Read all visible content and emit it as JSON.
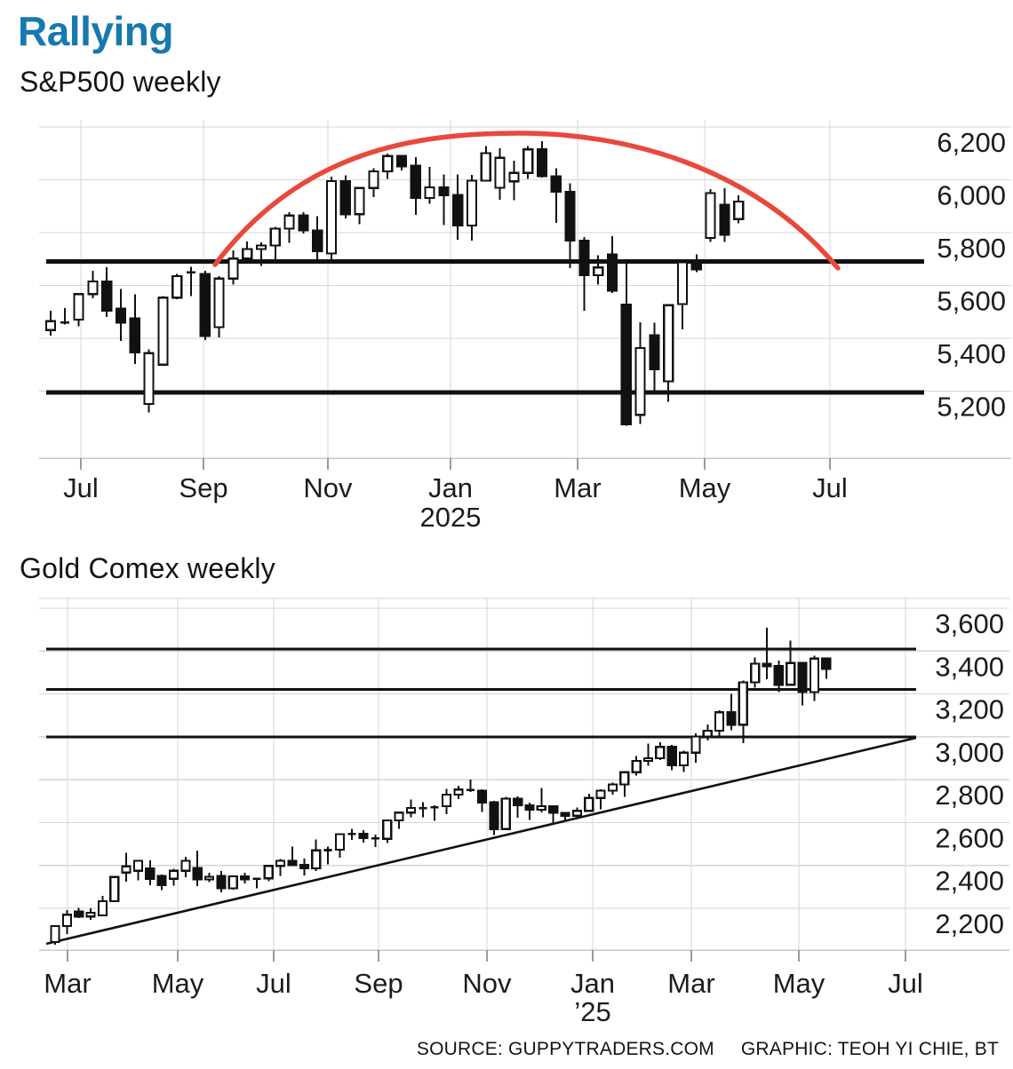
{
  "header": {
    "title": "Rallying"
  },
  "colors": {
    "title_blue": "#1779ae",
    "arc_red": "#e8493c",
    "ink": "#111111",
    "grid": "#d6d6d6",
    "axis_line": "#c9c9c9",
    "tick": "#9b9b9b"
  },
  "footer": {
    "source": "SOURCE: GUPPYTRADERS.COM",
    "credit": "GRAPHIC: TEOH YI CHIE, BT"
  },
  "chart_data": [
    {
      "id": "sp500-weekly",
      "type": "candlestick",
      "title": "S&P500 weekly",
      "ylim": [
        4950,
        6230
      ],
      "grid": true,
      "y_ticks": {
        "values": [
          6200,
          6000,
          5800,
          5600,
          5400,
          5200
        ],
        "labels": [
          "6,200",
          "6,000",
          "5,800",
          "5,600",
          "5,400",
          "5,200"
        ]
      },
      "x_ticks": {
        "labels": [
          "Jul",
          "Sep",
          "Nov",
          "Jan",
          "Mar",
          "May",
          "Jul"
        ],
        "year_label": "2025",
        "year_under_index": 3
      },
      "horizontal_lines": [
        5690,
        5195
      ],
      "annotations": [
        {
          "name": "rounding-top-arc",
          "shape": "dome-arc",
          "color_key": "arc_red",
          "start_value": 5680,
          "peak_value": 6175,
          "end_value": 5665
        }
      ],
      "candles_ohlc": [
        [
          5431,
          5505,
          5410,
          5465
        ],
        [
          5459,
          5515,
          5452,
          5461
        ],
        [
          5471,
          5572,
          5446,
          5567
        ],
        [
          5567,
          5656,
          5551,
          5615
        ],
        [
          5615,
          5669,
          5481,
          5505
        ],
        [
          5513,
          5586,
          5390,
          5459
        ],
        [
          5476,
          5566,
          5302,
          5346
        ],
        [
          5151,
          5358,
          5119,
          5344
        ],
        [
          5300,
          5560,
          5297,
          5554
        ],
        [
          5554,
          5643,
          5548,
          5635
        ],
        [
          5650,
          5670,
          5560,
          5648
        ],
        [
          5644,
          5656,
          5394,
          5408
        ],
        [
          5442,
          5636,
          5403,
          5626
        ],
        [
          5626,
          5733,
          5604,
          5702
        ],
        [
          5702,
          5767,
          5696,
          5738
        ],
        [
          5738,
          5763,
          5674,
          5751
        ],
        [
          5751,
          5822,
          5696,
          5815
        ],
        [
          5815,
          5878,
          5762,
          5865
        ],
        [
          5865,
          5878,
          5797,
          5808
        ],
        [
          5808,
          5863,
          5697,
          5729
        ],
        [
          5721,
          6012,
          5697,
          5995
        ],
        [
          5995,
          6017,
          5853,
          5870
        ],
        [
          5870,
          5972,
          5832,
          5969
        ],
        [
          5969,
          6044,
          5935,
          6032
        ],
        [
          6032,
          6100,
          6003,
          6090
        ],
        [
          6090,
          6093,
          6035,
          6051
        ],
        [
          6054,
          6085,
          5867,
          5931
        ],
        [
          5931,
          6049,
          5909,
          5971
        ],
        [
          5971,
          6021,
          5829,
          5942
        ],
        [
          5942,
          6021,
          5773,
          5827
        ],
        [
          5827,
          6018,
          5769,
          5997
        ],
        [
          5997,
          6128,
          5995,
          6101
        ],
        [
          5970,
          6120,
          5925,
          6083
        ],
        [
          5994,
          6073,
          5923,
          6026
        ],
        [
          6026,
          6127,
          6003,
          6115
        ],
        [
          6115,
          6147,
          6008,
          6013
        ],
        [
          6013,
          6043,
          5837,
          5955
        ],
        [
          5955,
          5986,
          5666,
          5770
        ],
        [
          5770,
          5783,
          5505,
          5639
        ],
        [
          5639,
          5715,
          5603,
          5668
        ],
        [
          5718,
          5787,
          5572,
          5581
        ],
        [
          5527,
          5695,
          5069,
          5074
        ],
        [
          5110,
          5460,
          5075,
          5363
        ],
        [
          5411,
          5459,
          5191,
          5283
        ],
        [
          5237,
          5528,
          5160,
          5525
        ],
        [
          5529,
          5700,
          5433,
          5687
        ],
        [
          5687,
          5717,
          5650,
          5660
        ],
        [
          5780,
          5965,
          5765,
          5950
        ],
        [
          5905,
          5968,
          5765,
          5792
        ],
        [
          5851,
          5941,
          5835,
          5918
        ]
      ]
    },
    {
      "id": "gold-comex-weekly",
      "type": "candlestick",
      "title": "Gold Comex weekly",
      "ylim": [
        2010,
        3660
      ],
      "grid": true,
      "y_ticks": {
        "values": [
          3600,
          3400,
          3200,
          3000,
          2800,
          2600,
          2400,
          2200
        ],
        "labels": [
          "3,600",
          "3,400",
          "3,200",
          "3,000",
          "2,800",
          "2,600",
          "2,400",
          "2,200"
        ]
      },
      "x_ticks": {
        "labels": [
          "Mar",
          "May",
          "Jul",
          "Sep",
          "Nov",
          "Jan",
          "Mar",
          "May",
          "Jul"
        ],
        "year_label": "’25",
        "year_under_index": 5
      },
      "horizontal_lines": [
        3410,
        3220,
        3000
      ],
      "trendline": {
        "start_value": 2040,
        "end_value": 3005
      },
      "candles_ohlc": [
        [
          2042,
          2120,
          2030,
          2117
        ],
        [
          2117,
          2192,
          2080,
          2170
        ],
        [
          2186,
          2202,
          2155,
          2162
        ],
        [
          2162,
          2200,
          2146,
          2179
        ],
        [
          2167,
          2257,
          2164,
          2233
        ],
        [
          2233,
          2350,
          2228,
          2346
        ],
        [
          2367,
          2458,
          2325,
          2396
        ],
        [
          2375,
          2425,
          2330,
          2421
        ],
        [
          2387,
          2424,
          2307,
          2338
        ],
        [
          2350,
          2358,
          2285,
          2308
        ],
        [
          2338,
          2385,
          2305,
          2375
        ],
        [
          2375,
          2440,
          2345,
          2421
        ],
        [
          2388,
          2470,
          2304,
          2334
        ],
        [
          2334,
          2366,
          2322,
          2347
        ],
        [
          2350,
          2375,
          2275,
          2293
        ],
        [
          2293,
          2350,
          2287,
          2349
        ],
        [
          2349,
          2365,
          2317,
          2334
        ],
        [
          2334,
          2341,
          2293,
          2340
        ],
        [
          2340,
          2402,
          2327,
          2398
        ],
        [
          2398,
          2430,
          2352,
          2421
        ],
        [
          2421,
          2488,
          2396,
          2402
        ],
        [
          2402,
          2432,
          2353,
          2387
        ],
        [
          2387,
          2522,
          2375,
          2470
        ],
        [
          2470,
          2487,
          2404,
          2473
        ],
        [
          2473,
          2549,
          2437,
          2546
        ],
        [
          2546,
          2570,
          2519,
          2548
        ],
        [
          2548,
          2564,
          2506,
          2527
        ],
        [
          2527,
          2543,
          2485,
          2524
        ],
        [
          2524,
          2614,
          2504,
          2610
        ],
        [
          2610,
          2651,
          2571,
          2646
        ],
        [
          2646,
          2708,
          2625,
          2668
        ],
        [
          2668,
          2694,
          2625,
          2667
        ],
        [
          2667,
          2680,
          2607,
          2676
        ],
        [
          2676,
          2758,
          2640,
          2730
        ],
        [
          2730,
          2772,
          2709,
          2754
        ],
        [
          2754,
          2801,
          2743,
          2749
        ],
        [
          2749,
          2755,
          2650,
          2694
        ],
        [
          2694,
          2702,
          2542,
          2570
        ],
        [
          2570,
          2720,
          2565,
          2712
        ],
        [
          2712,
          2721,
          2622,
          2681
        ],
        [
          2681,
          2692,
          2613,
          2660
        ],
        [
          2660,
          2761,
          2648,
          2676
        ],
        [
          2676,
          2680,
          2596,
          2645
        ],
        [
          2645,
          2646,
          2608,
          2632
        ],
        [
          2632,
          2670,
          2622,
          2655
        ],
        [
          2655,
          2735,
          2650,
          2715
        ],
        [
          2715,
          2755,
          2662,
          2749
        ],
        [
          2749,
          2786,
          2730,
          2778
        ],
        [
          2778,
          2840,
          2720,
          2835
        ],
        [
          2835,
          2910,
          2820,
          2887
        ],
        [
          2887,
          2968,
          2864,
          2900
        ],
        [
          2900,
          2974,
          2892,
          2953
        ],
        [
          2953,
          2963,
          2844,
          2867
        ],
        [
          2867,
          2936,
          2835,
          2926
        ],
        [
          2926,
          3017,
          2880,
          3001
        ],
        [
          3001,
          3057,
          2982,
          3028
        ],
        [
          3028,
          3124,
          3001,
          3114
        ],
        [
          3114,
          3201,
          3030,
          3056
        ],
        [
          3056,
          3263,
          2970,
          3254
        ],
        [
          3254,
          3371,
          3230,
          3341
        ],
        [
          3341,
          3509,
          3268,
          3330
        ],
        [
          3330,
          3355,
          3209,
          3243
        ],
        [
          3243,
          3448,
          3240,
          3344
        ],
        [
          3344,
          3344,
          3146,
          3208
        ],
        [
          3208,
          3379,
          3168,
          3365
        ],
        [
          3365,
          3367,
          3270,
          3316
        ]
      ]
    }
  ]
}
